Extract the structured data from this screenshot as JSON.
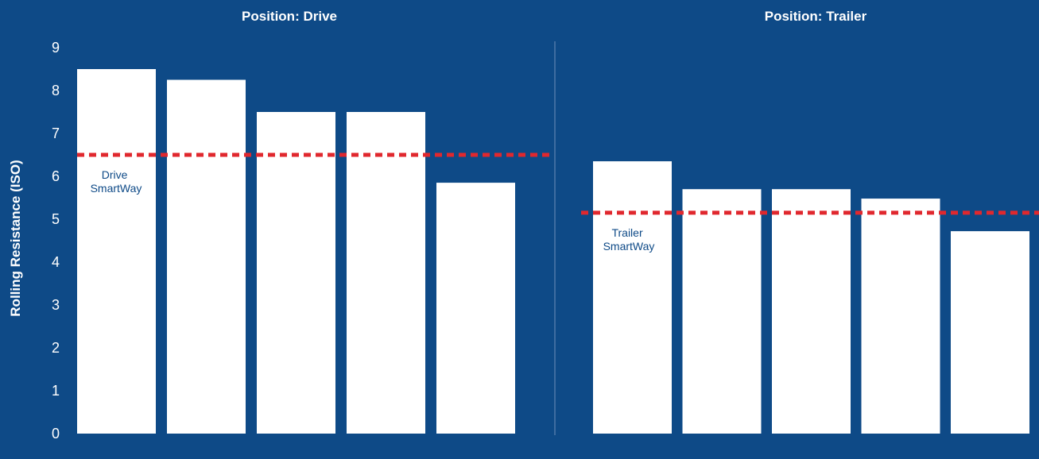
{
  "chart_data": {
    "type": "bar",
    "ylabel": "Rolling Resistance (ISO)",
    "ylim": [
      0,
      9
    ],
    "yticks": [
      0,
      1,
      2,
      3,
      4,
      5,
      6,
      7,
      8,
      9
    ],
    "grid": false,
    "colors": {
      "background": "#0e4a87",
      "bar": "#ffffff",
      "reference_line": "#e0282e",
      "reference_label": "#0e4a87",
      "divider": "#6f8fb8"
    },
    "panels": [
      {
        "title": "Position: Drive",
        "values": [
          8.5,
          8.25,
          7.5,
          7.5,
          5.85
        ],
        "reference": {
          "value": 6.5,
          "label_lines": [
            "Drive",
            "SmartWay"
          ]
        }
      },
      {
        "title": "Position: Trailer",
        "values": [
          6.35,
          5.7,
          5.7,
          5.48,
          4.72
        ],
        "reference": {
          "value": 5.15,
          "label_lines": [
            "Trailer",
            "SmartWay"
          ]
        }
      }
    ]
  }
}
